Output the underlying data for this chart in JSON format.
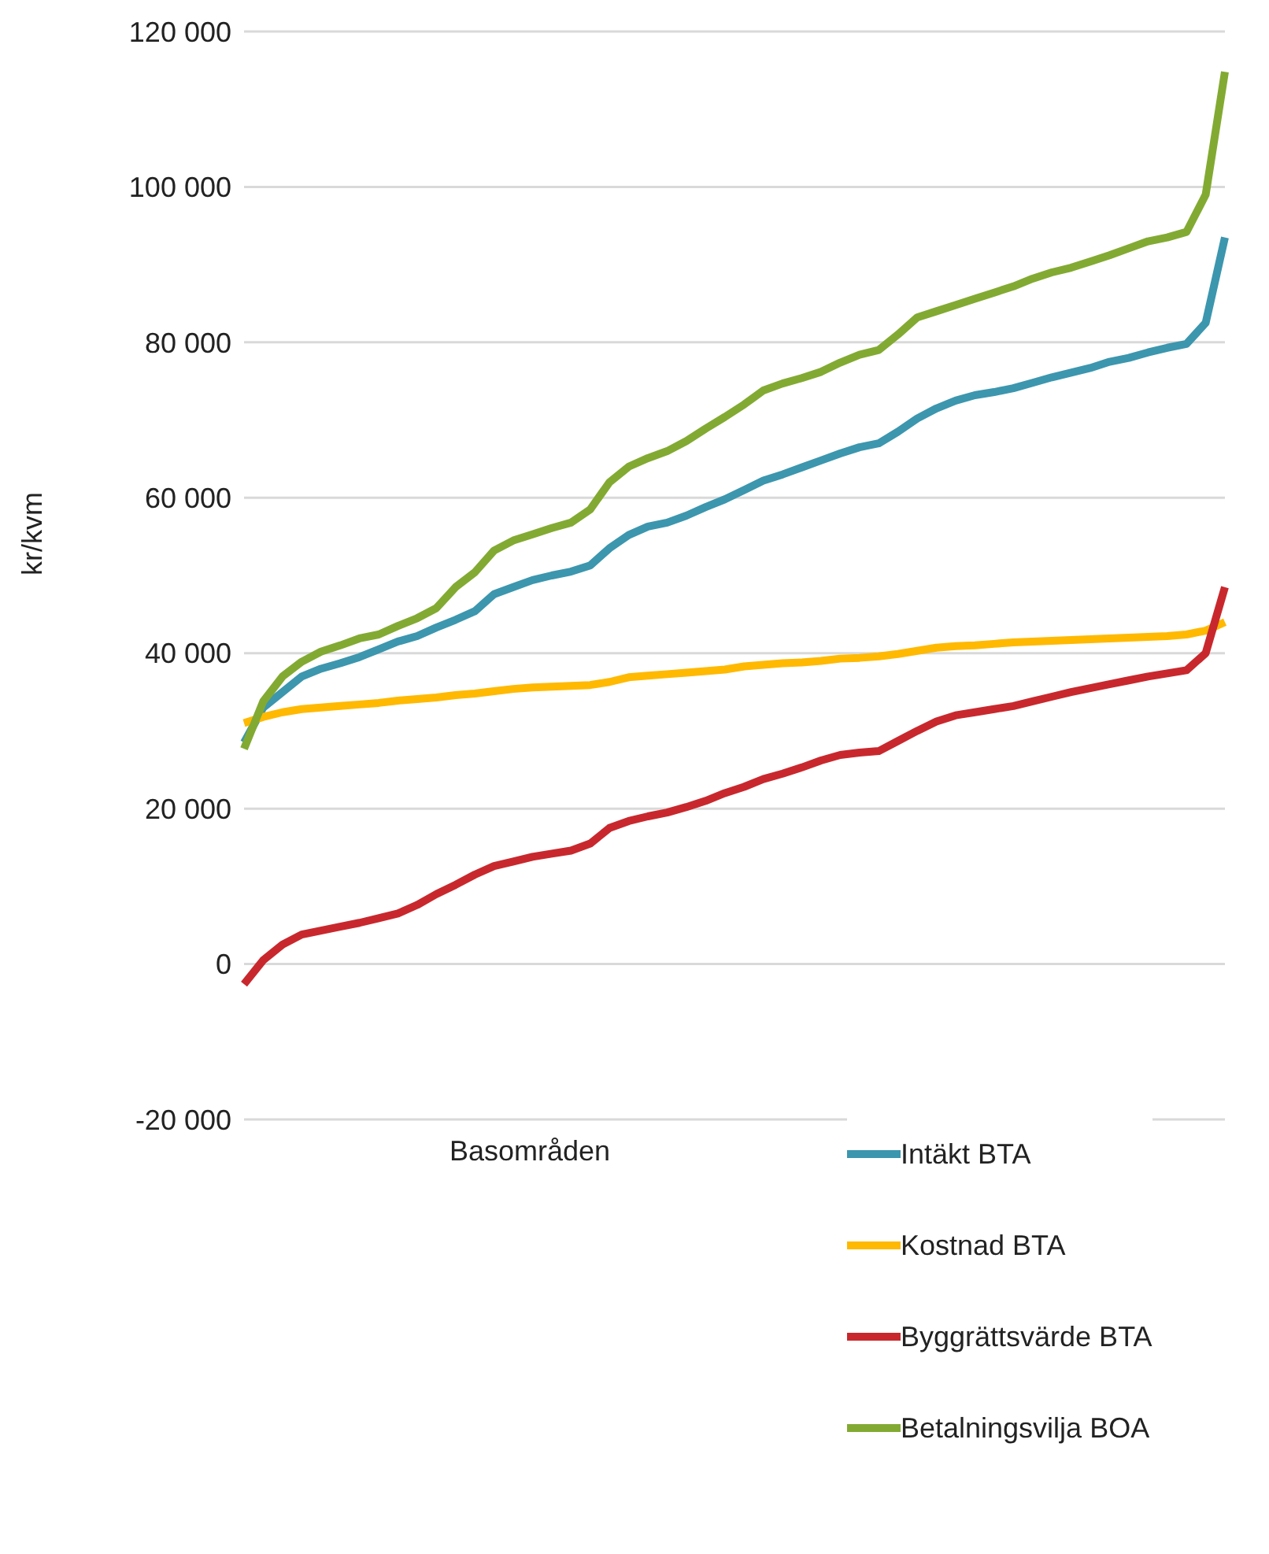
{
  "chart_data": {
    "type": "line",
    "xlabel": "Basområden",
    "ylabel": "kr/kvm",
    "categories": [
      null,
      null,
      null,
      null,
      null,
      null,
      null,
      null,
      null,
      null,
      null,
      null,
      null,
      null,
      null,
      null,
      null,
      null,
      null,
      null,
      null,
      null,
      null,
      null,
      null,
      null,
      null,
      null,
      null,
      null,
      null,
      null,
      null,
      null,
      null,
      null,
      null,
      null,
      null,
      null,
      null,
      null,
      null,
      null,
      null,
      null,
      null,
      null,
      null,
      null,
      null,
      null
    ],
    "ylim": [
      -20000,
      120000
    ],
    "yticks": [
      {
        "value": -20000,
        "label": "-20 000"
      },
      0,
      {
        "value": 20000,
        "label": "20 000"
      },
      {
        "value": 40000,
        "label": "40 000"
      },
      {
        "value": 60000,
        "label": "60 000"
      },
      {
        "value": 80000,
        "label": "80 000"
      },
      {
        "value": 100000,
        "label": "100 000"
      },
      {
        "value": 120000,
        "label": "120 000"
      }
    ],
    "grid": "y",
    "legend": "bottom right",
    "series": [
      {
        "name": "Intäkt BTA",
        "color": "#3c96ae",
        "values": [
          28500,
          33000,
          35000,
          37000,
          38000,
          38700,
          39500,
          40500,
          41500,
          42200,
          43300,
          44300,
          45400,
          47600,
          48500,
          49400,
          50000,
          50500,
          51300,
          53500,
          55200,
          56300,
          56800,
          57700,
          58800,
          59800,
          61000,
          62200,
          63000,
          63900,
          64800,
          65700,
          66500,
          67000,
          68500,
          70200,
          71500,
          72500,
          73200,
          73600,
          74100,
          74800,
          75500,
          76100,
          76700,
          77500,
          78000,
          78700,
          79300,
          79800,
          82500,
          93500
        ]
      },
      {
        "name": "Kostnad BTA",
        "color": "#ffb900",
        "values": [
          31000,
          31800,
          32400,
          32800,
          33000,
          33200,
          33400,
          33600,
          33900,
          34100,
          34300,
          34600,
          34800,
          35100,
          35400,
          35600,
          35700,
          35800,
          35900,
          36300,
          36900,
          37100,
          37300,
          37500,
          37700,
          37900,
          38300,
          38500,
          38700,
          38800,
          39000,
          39300,
          39400,
          39600,
          39900,
          40300,
          40700,
          40900,
          41000,
          41200,
          41400,
          41500,
          41600,
          41700,
          41800,
          41900,
          42000,
          42100,
          42200,
          42400,
          42900,
          44000
        ]
      },
      {
        "name": "Byggrättsvärde BTA",
        "color": "#c8282d",
        "values": [
          -2600,
          500,
          2500,
          3800,
          4300,
          4800,
          5300,
          5900,
          6500,
          7600,
          9000,
          10200,
          11500,
          12600,
          13200,
          13800,
          14200,
          14600,
          15500,
          17500,
          18400,
          19000,
          19500,
          20200,
          21000,
          22000,
          22800,
          23800,
          24500,
          25300,
          26200,
          26900,
          27200,
          27400,
          28700,
          30000,
          31200,
          32000,
          32400,
          32800,
          33200,
          33800,
          34400,
          35000,
          35500,
          36000,
          36500,
          37000,
          37400,
          37800,
          40000,
          48500
        ]
      },
      {
        "name": "Betalningsvilja BOA",
        "color": "#82aa32",
        "values": [
          27700,
          33800,
          37000,
          38900,
          40200,
          41000,
          41900,
          42400,
          43500,
          44500,
          45800,
          48500,
          50400,
          53200,
          54500,
          55300,
          56100,
          56800,
          58500,
          62000,
          64000,
          65100,
          66000,
          67300,
          68900,
          70400,
          72000,
          73800,
          74700,
          75400,
          76200,
          77400,
          78400,
          79000,
          81000,
          83200,
          84000,
          84800,
          85600,
          86400,
          87200,
          88200,
          89000,
          89600,
          90400,
          91200,
          92100,
          93000,
          93500,
          94200,
          99000,
          114800
        ]
      }
    ]
  }
}
